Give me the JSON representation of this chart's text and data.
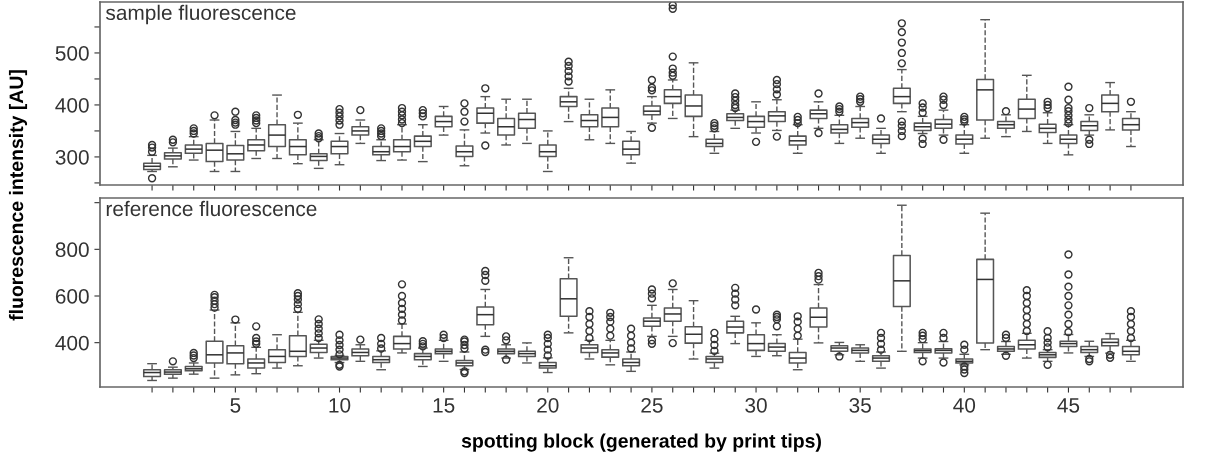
{
  "chart_data": [
    {
      "type": "box",
      "title": "sample fluorescence",
      "ylabel": "fluorescence intensity [AU]",
      "tick_labels": "y",
      "grid": false,
      "legend": false,
      "x": [
        1,
        2,
        3,
        4,
        5,
        6,
        7,
        8,
        9,
        10,
        11,
        12,
        13,
        14,
        15,
        16,
        17,
        18,
        19,
        20,
        21,
        22,
        23,
        24,
        25,
        26,
        27,
        28,
        29,
        30,
        31,
        32,
        33,
        34,
        35,
        36,
        37,
        38,
        39,
        40,
        41,
        42,
        43,
        44,
        45,
        46,
        47,
        48
      ],
      "xlim": [
        -1.5,
        50.5
      ],
      "xticks": [
        {
          "value": 1,
          "label": null
        },
        {
          "value": 2,
          "label": null
        },
        {
          "value": 3,
          "label": null
        },
        {
          "value": 4,
          "label": null
        },
        {
          "value": 5,
          "label": null
        },
        {
          "value": 6,
          "label": null
        },
        {
          "value": 7,
          "label": null
        },
        {
          "value": 8,
          "label": null
        },
        {
          "value": 9,
          "label": null
        },
        {
          "value": 10,
          "label": null
        },
        {
          "value": 11,
          "label": null
        },
        {
          "value": 12,
          "label": null
        },
        {
          "value": 13,
          "label": null
        },
        {
          "value": 14,
          "label": null
        },
        {
          "value": 15,
          "label": null
        },
        {
          "value": 16,
          "label": null
        },
        {
          "value": 17,
          "label": null
        },
        {
          "value": 18,
          "label": null
        },
        {
          "value": 19,
          "label": null
        },
        {
          "value": 20,
          "label": null
        },
        {
          "value": 21,
          "label": null
        },
        {
          "value": 22,
          "label": null
        },
        {
          "value": 23,
          "label": null
        },
        {
          "value": 24,
          "label": null
        },
        {
          "value": 25,
          "label": null
        },
        {
          "value": 26,
          "label": null
        },
        {
          "value": 27,
          "label": null
        },
        {
          "value": 28,
          "label": null
        },
        {
          "value": 29,
          "label": null
        },
        {
          "value": 30,
          "label": null
        },
        {
          "value": 31,
          "label": null
        },
        {
          "value": 32,
          "label": null
        },
        {
          "value": 33,
          "label": null
        },
        {
          "value": 34,
          "label": null
        },
        {
          "value": 35,
          "label": null
        },
        {
          "value": 36,
          "label": null
        },
        {
          "value": 37,
          "label": null
        },
        {
          "value": 38,
          "label": null
        },
        {
          "value": 39,
          "label": null
        },
        {
          "value": 40,
          "label": null
        },
        {
          "value": 41,
          "label": null
        },
        {
          "value": 42,
          "label": null
        },
        {
          "value": 43,
          "label": null
        },
        {
          "value": 44,
          "label": null
        },
        {
          "value": 45,
          "label": null
        },
        {
          "value": 46,
          "label": null
        },
        {
          "value": 47,
          "label": null
        },
        {
          "value": 48,
          "label": null
        }
      ],
      "ylim": [
        246,
        598
      ],
      "yticks": [
        {
          "value": 250,
          "label": null
        },
        300,
        {
          "value": 350,
          "label": null
        },
        400,
        {
          "value": 450,
          "label": null
        },
        500,
        {
          "value": 550,
          "label": null
        }
      ],
      "boxes": [
        {
          "low": 272,
          "q1": 276,
          "median": 282,
          "q3": 288,
          "high": 303,
          "outliers": [
            259,
            310,
            318,
            323
          ]
        },
        {
          "low": 281,
          "q1": 296,
          "median": 302,
          "q3": 308,
          "high": 317,
          "outliers": [
            328,
            333
          ]
        },
        {
          "low": 294,
          "q1": 307,
          "median": 315,
          "q3": 323,
          "high": 339,
          "outliers": [
            345,
            350,
            355
          ]
        },
        {
          "low": 272,
          "q1": 291,
          "median": 313,
          "q3": 326,
          "high": 371,
          "outliers": [
            380
          ]
        },
        {
          "low": 272,
          "q1": 294,
          "median": 306,
          "q3": 322,
          "high": 349,
          "outliers": [
            362,
            366,
            371,
            387
          ]
        },
        {
          "low": 297,
          "q1": 312,
          "median": 323,
          "q3": 333,
          "high": 355,
          "outliers": [
            365,
            370,
            375,
            380
          ]
        },
        {
          "low": 297,
          "q1": 320,
          "median": 342,
          "q3": 362,
          "high": 419
        },
        {
          "low": 287,
          "q1": 304,
          "median": 320,
          "q3": 333,
          "high": 365,
          "outliers": [
            381
          ]
        },
        {
          "low": 278,
          "q1": 293,
          "median": 301,
          "q3": 306,
          "high": 333,
          "outliers": [
            336,
            340,
            345
          ]
        },
        {
          "low": 285,
          "q1": 306,
          "median": 320,
          "q3": 330,
          "high": 345,
          "outliers": [
            362,
            370,
            378,
            385,
            392
          ]
        },
        {
          "low": 326,
          "q1": 342,
          "median": 350,
          "q3": 358,
          "high": 371,
          "outliers": [
            390
          ]
        },
        {
          "low": 293,
          "q1": 304,
          "median": 310,
          "q3": 320,
          "high": 333,
          "outliers": [
            340,
            345,
            350,
            355
          ]
        },
        {
          "low": 294,
          "q1": 310,
          "median": 320,
          "q3": 333,
          "high": 362,
          "outliers": [
            365,
            372,
            380,
            387,
            394
          ]
        },
        {
          "low": 291,
          "q1": 320,
          "median": 330,
          "q3": 340,
          "high": 362,
          "outliers": [
            378,
            384,
            390
          ]
        },
        {
          "low": 342,
          "q1": 358,
          "median": 368,
          "q3": 378,
          "high": 397
        },
        {
          "low": 283,
          "q1": 301,
          "median": 310,
          "q3": 321,
          "high": 352,
          "outliers": [
            368,
            387,
            403
          ]
        },
        {
          "low": 346,
          "q1": 365,
          "median": 384,
          "q3": 394,
          "high": 416,
          "outliers": [
            322,
            432
          ]
        },
        {
          "low": 323,
          "q1": 342,
          "median": 358,
          "q3": 374,
          "high": 411
        },
        {
          "low": 326,
          "q1": 355,
          "median": 372,
          "q3": 384,
          "high": 411
        },
        {
          "low": 272,
          "q1": 301,
          "median": 310,
          "q3": 323,
          "high": 350
        },
        {
          "low": 368,
          "q1": 397,
          "median": 406,
          "q3": 416,
          "high": 432,
          "outliers": [
            445,
            455,
            465,
            475,
            483
          ]
        },
        {
          "low": 333,
          "q1": 358,
          "median": 370,
          "q3": 381,
          "high": 411
        },
        {
          "low": 326,
          "q1": 358,
          "median": 376,
          "q3": 394,
          "high": 429
        },
        {
          "low": 288,
          "q1": 304,
          "median": 315,
          "q3": 330,
          "high": 349
        },
        {
          "low": 365,
          "q1": 381,
          "median": 388,
          "q3": 398,
          "high": 416,
          "outliers": [
            356,
            428,
            433,
            448
          ]
        },
        {
          "low": 374,
          "q1": 403,
          "median": 416,
          "q3": 429,
          "high": 448,
          "outliers": [
            456,
            462,
            470,
            493,
            585,
            592
          ]
        },
        {
          "low": 339,
          "q1": 378,
          "median": 398,
          "q3": 419,
          "high": 481
        },
        {
          "low": 307,
          "q1": 320,
          "median": 326,
          "q3": 334,
          "high": 349,
          "outliers": [
            355,
            360,
            365
          ]
        },
        {
          "low": 355,
          "q1": 370,
          "median": 376,
          "q3": 383,
          "high": 390,
          "outliers": [
            394,
            400,
            408,
            415,
            422
          ]
        },
        {
          "low": 346,
          "q1": 357,
          "median": 368,
          "q3": 378,
          "high": 406,
          "outliers": [
            329
          ]
        },
        {
          "low": 351,
          "q1": 368,
          "median": 379,
          "q3": 387,
          "high": 410,
          "outliers": [
            339,
            420,
            430,
            440,
            448
          ]
        },
        {
          "low": 307,
          "q1": 323,
          "median": 331,
          "q3": 340,
          "high": 362,
          "outliers": [
            365,
            371,
            377
          ]
        },
        {
          "low": 355,
          "q1": 374,
          "median": 383,
          "q3": 390,
          "high": 406,
          "outliers": [
            346,
            422
          ]
        },
        {
          "low": 326,
          "q1": 346,
          "median": 353,
          "q3": 362,
          "high": 380,
          "outliers": [
            387,
            392,
            397
          ]
        },
        {
          "low": 336,
          "q1": 357,
          "median": 366,
          "q3": 374,
          "high": 397,
          "outliers": [
            406,
            411,
            416
          ]
        },
        {
          "low": 307,
          "q1": 326,
          "median": 334,
          "q3": 342,
          "high": 355,
          "outliers": [
            374
          ]
        },
        {
          "low": 387,
          "q1": 403,
          "median": 416,
          "q3": 432,
          "high": 468,
          "outliers": [
            340,
            350,
            360,
            368,
            480,
            500,
            520,
            540,
            557
          ]
        },
        {
          "low": 345,
          "q1": 351,
          "median": 358,
          "q3": 365,
          "high": 378,
          "outliers": [
            325,
            335,
            385,
            395,
            403
          ]
        },
        {
          "low": 342,
          "q1": 355,
          "median": 363,
          "q3": 372,
          "high": 390,
          "outliers": [
            333,
            400,
            410,
            416
          ]
        },
        {
          "low": 307,
          "q1": 325,
          "median": 334,
          "q3": 342,
          "high": 362,
          "outliers": [
            368,
            372,
            377
          ]
        },
        {
          "low": 336,
          "q1": 371,
          "median": 429,
          "q3": 449,
          "high": 564
        },
        {
          "low": 339,
          "q1": 355,
          "median": 362,
          "q3": 368,
          "high": 381,
          "outliers": [
            388
          ]
        },
        {
          "low": 349,
          "q1": 374,
          "median": 392,
          "q3": 411,
          "high": 457
        },
        {
          "low": 326,
          "q1": 347,
          "median": 355,
          "q3": 363,
          "high": 385,
          "outliers": [
            394,
            400,
            406
          ]
        },
        {
          "low": 304,
          "q1": 326,
          "median": 334,
          "q3": 342,
          "high": 362,
          "outliers": [
            365,
            372,
            380,
            388,
            394,
            410,
            435
          ]
        },
        {
          "low": 342,
          "q1": 351,
          "median": 360,
          "q3": 368,
          "high": 381,
          "outliers": [
            325,
            333,
            394
          ]
        },
        {
          "low": 352,
          "q1": 387,
          "median": 403,
          "q3": 419,
          "high": 443
        },
        {
          "low": 320,
          "q1": 352,
          "median": 362,
          "q3": 374,
          "high": 387,
          "outliers": [
            406
          ]
        }
      ]
    },
    {
      "type": "box",
      "title": "reference fluorescence",
      "xlabel": "spotting block (generated by print tips)",
      "grid": false,
      "legend": false,
      "x": [
        1,
        2,
        3,
        4,
        5,
        6,
        7,
        8,
        9,
        10,
        11,
        12,
        13,
        14,
        15,
        16,
        17,
        18,
        19,
        20,
        21,
        22,
        23,
        24,
        25,
        26,
        27,
        28,
        29,
        30,
        31,
        32,
        33,
        34,
        35,
        36,
        37,
        38,
        39,
        40,
        41,
        42,
        43,
        44,
        45,
        46,
        47,
        48
      ],
      "xlim": [
        -1.5,
        50.5
      ],
      "xticks": [
        {
          "value": 1,
          "label": null
        },
        {
          "value": 2,
          "label": null
        },
        {
          "value": 3,
          "label": null
        },
        {
          "value": 4,
          "label": null
        },
        5,
        {
          "value": 6,
          "label": null
        },
        {
          "value": 7,
          "label": null
        },
        {
          "value": 8,
          "label": null
        },
        {
          "value": 9,
          "label": null
        },
        10,
        {
          "value": 11,
          "label": null
        },
        {
          "value": 12,
          "label": null
        },
        {
          "value": 13,
          "label": null
        },
        {
          "value": 14,
          "label": null
        },
        15,
        {
          "value": 16,
          "label": null
        },
        {
          "value": 17,
          "label": null
        },
        {
          "value": 18,
          "label": null
        },
        {
          "value": 19,
          "label": null
        },
        20,
        {
          "value": 21,
          "label": null
        },
        {
          "value": 22,
          "label": null
        },
        {
          "value": 23,
          "label": null
        },
        {
          "value": 24,
          "label": null
        },
        25,
        {
          "value": 26,
          "label": null
        },
        {
          "value": 27,
          "label": null
        },
        {
          "value": 28,
          "label": null
        },
        {
          "value": 29,
          "label": null
        },
        30,
        {
          "value": 31,
          "label": null
        },
        {
          "value": 32,
          "label": null
        },
        {
          "value": 33,
          "label": null
        },
        {
          "value": 34,
          "label": null
        },
        35,
        {
          "value": 36,
          "label": null
        },
        {
          "value": 37,
          "label": null
        },
        {
          "value": 38,
          "label": null
        },
        {
          "value": 39,
          "label": null
        },
        40,
        {
          "value": 41,
          "label": null
        },
        {
          "value": 42,
          "label": null
        },
        {
          "value": 43,
          "label": null
        },
        {
          "value": 44,
          "label": null
        },
        45,
        {
          "value": 46,
          "label": null
        },
        {
          "value": 47,
          "label": null
        },
        {
          "value": 48,
          "label": null
        }
      ],
      "ylim": [
        210,
        1020
      ],
      "yticks": [
        400,
        600,
        800,
        {
          "value": 1000,
          "label": null
        }
      ],
      "boxes": [
        {
          "low": 238,
          "q1": 255,
          "median": 272,
          "q3": 284,
          "high": 310
        },
        {
          "low": 248,
          "q1": 265,
          "median": 274,
          "q3": 284,
          "high": 295,
          "outliers": [
            320
          ]
        },
        {
          "low": 265,
          "q1": 280,
          "median": 288,
          "q3": 298,
          "high": 313,
          "outliers": [
            334,
            345,
            356
          ]
        },
        {
          "low": 248,
          "q1": 313,
          "median": 348,
          "q3": 406,
          "high": 540,
          "outliers": [
            550,
            565,
            580,
            595,
            605
          ]
        },
        {
          "low": 262,
          "q1": 310,
          "median": 356,
          "q3": 387,
          "high": 485,
          "outliers": [
            499
          ]
        },
        {
          "low": 267,
          "q1": 291,
          "median": 313,
          "q3": 330,
          "high": 380,
          "outliers": [
            395,
            405,
            420,
            470
          ]
        },
        {
          "low": 291,
          "q1": 315,
          "median": 341,
          "q3": 370,
          "high": 434
        },
        {
          "low": 301,
          "q1": 341,
          "median": 363,
          "q3": 430,
          "high": 530,
          "outliers": [
            545,
            565,
            585,
            600,
            612
          ]
        },
        {
          "low": 334,
          "q1": 358,
          "median": 377,
          "q3": 393,
          "high": 410,
          "outliers": [
            420,
            440,
            460,
            480,
            500
          ]
        },
        {
          "low": 315,
          "q1": 327,
          "median": 334,
          "q3": 341,
          "high": 345,
          "outliers": [
            298,
            305,
            350,
            370,
            390,
            410,
            434
          ]
        },
        {
          "low": 320,
          "q1": 344,
          "median": 358,
          "q3": 373,
          "high": 391,
          "outliers": [
            413
          ]
        },
        {
          "low": 284,
          "q1": 315,
          "median": 327,
          "q3": 341,
          "high": 365,
          "outliers": [
            375,
            395,
            420
          ]
        },
        {
          "low": 356,
          "q1": 373,
          "median": 396,
          "q3": 427,
          "high": 480,
          "outliers": [
            495,
            520,
            545,
            570,
            600,
            650
          ]
        },
        {
          "low": 298,
          "q1": 327,
          "median": 341,
          "q3": 353,
          "high": 377,
          "outliers": [
            384,
            395,
            406
          ]
        },
        {
          "low": 320,
          "q1": 353,
          "median": 363,
          "q3": 373,
          "high": 410,
          "outliers": [
            420,
            434
          ]
        },
        {
          "low": 285,
          "q1": 301,
          "median": 313,
          "q3": 324,
          "high": 360,
          "outliers": [
            270,
            277,
            375,
            390,
            405,
            413
          ]
        },
        {
          "low": 427,
          "q1": 477,
          "median": 520,
          "q3": 553,
          "high": 628,
          "outliers": [
            360,
            370,
            665,
            690,
            707
          ]
        },
        {
          "low": 334,
          "q1": 353,
          "median": 363,
          "q3": 373,
          "high": 391,
          "outliers": [
            327,
            410,
            427
          ]
        },
        {
          "low": 313,
          "q1": 341,
          "median": 353,
          "q3": 363,
          "high": 399
        },
        {
          "low": 272,
          "q1": 291,
          "median": 301,
          "q3": 315,
          "high": 335,
          "outliers": [
            345,
            370,
            395,
            420,
            434
          ]
        },
        {
          "low": 442,
          "q1": 513,
          "median": 588,
          "q3": 674,
          "high": 764
        },
        {
          "low": 330,
          "q1": 358,
          "median": 377,
          "q3": 391,
          "high": 410,
          "outliers": [
            420,
            450,
            480,
            510,
            535
          ]
        },
        {
          "low": 305,
          "q1": 338,
          "median": 356,
          "q3": 370,
          "high": 410,
          "outliers": [
            430,
            460,
            490,
            510,
            528
          ]
        },
        {
          "low": 277,
          "q1": 301,
          "median": 315,
          "q3": 330,
          "high": 360,
          "outliers": [
            375,
            400,
            430,
            460
          ]
        },
        {
          "low": 427,
          "q1": 470,
          "median": 492,
          "q3": 506,
          "high": 560,
          "outliers": [
            395,
            410,
            590,
            610,
            628
          ]
        },
        {
          "low": 427,
          "q1": 492,
          "median": 523,
          "q3": 549,
          "high": 628,
          "outliers": [
            398,
            654
          ]
        },
        {
          "low": 330,
          "q1": 398,
          "median": 436,
          "q3": 468,
          "high": 580
        },
        {
          "low": 291,
          "q1": 315,
          "median": 330,
          "q3": 341,
          "high": 355,
          "outliers": [
            365,
            390,
            415,
            442
          ]
        },
        {
          "low": 396,
          "q1": 442,
          "median": 467,
          "q3": 492,
          "high": 513,
          "outliers": [
            560,
            585,
            610,
            635
          ]
        },
        {
          "low": 341,
          "q1": 367,
          "median": 396,
          "q3": 434,
          "high": 485,
          "outliers": [
            542
          ]
        },
        {
          "low": 344,
          "q1": 363,
          "median": 381,
          "q3": 396,
          "high": 434,
          "outliers": [
            470,
            500,
            510,
            520
          ]
        },
        {
          "low": 284,
          "q1": 313,
          "median": 334,
          "q3": 358,
          "high": 415,
          "outliers": [
            430,
            460,
            490,
            513
          ]
        },
        {
          "low": 399,
          "q1": 467,
          "median": 509,
          "q3": 549,
          "high": 649,
          "outliers": [
            670,
            685,
            699
          ]
        },
        {
          "low": 348,
          "q1": 363,
          "median": 377,
          "q3": 387,
          "high": 401,
          "outliers": [
            341
          ]
        },
        {
          "low": 320,
          "q1": 356,
          "median": 367,
          "q3": 377,
          "high": 391
        },
        {
          "low": 291,
          "q1": 320,
          "median": 334,
          "q3": 344,
          "high": 360,
          "outliers": [
            370,
            395,
            420,
            442
          ]
        },
        {
          "low": 363,
          "q1": 555,
          "median": 665,
          "q3": 774,
          "high": 989
        },
        {
          "low": 334,
          "q1": 358,
          "median": 366,
          "q3": 373,
          "high": 400,
          "outliers": [
            320,
            415,
            430,
            442
          ]
        },
        {
          "low": 334,
          "q1": 356,
          "median": 367,
          "q3": 374,
          "high": 405,
          "outliers": [
            315,
            420,
            442
          ]
        },
        {
          "low": 305,
          "q1": 313,
          "median": 320,
          "q3": 330,
          "high": 350,
          "outliers": [
            270,
            285,
            298,
            370,
            391
          ]
        },
        {
          "low": 370,
          "q1": 399,
          "median": 671,
          "q3": 757,
          "high": 955
        },
        {
          "low": 350,
          "q1": 363,
          "median": 373,
          "q3": 384,
          "high": 405,
          "outliers": [
            344,
            420,
            434
          ]
        },
        {
          "low": 334,
          "q1": 373,
          "median": 391,
          "q3": 410,
          "high": 440,
          "outliers": [
            450,
            480,
            510,
            540,
            570,
            600,
            625
          ]
        },
        {
          "low": 320,
          "q1": 337,
          "median": 348,
          "q3": 358,
          "high": 370,
          "outliers": [
            305,
            380,
            400,
            420,
            449
          ]
        },
        {
          "low": 356,
          "q1": 384,
          "median": 396,
          "q3": 406,
          "high": 435,
          "outliers": [
            445,
            480,
            520,
            560,
            600,
            640,
            692,
            778
          ]
        },
        {
          "low": 341,
          "q1": 358,
          "median": 370,
          "q3": 384,
          "high": 406,
          "outliers": [
            320,
            330
          ]
        },
        {
          "low": 355,
          "q1": 387,
          "median": 401,
          "q3": 416,
          "high": 439,
          "outliers": [
            335,
            348
          ]
        },
        {
          "low": 320,
          "q1": 348,
          "median": 363,
          "q3": 384,
          "high": 410,
          "outliers": [
            420,
            450,
            480,
            510,
            535
          ]
        }
      ]
    }
  ]
}
